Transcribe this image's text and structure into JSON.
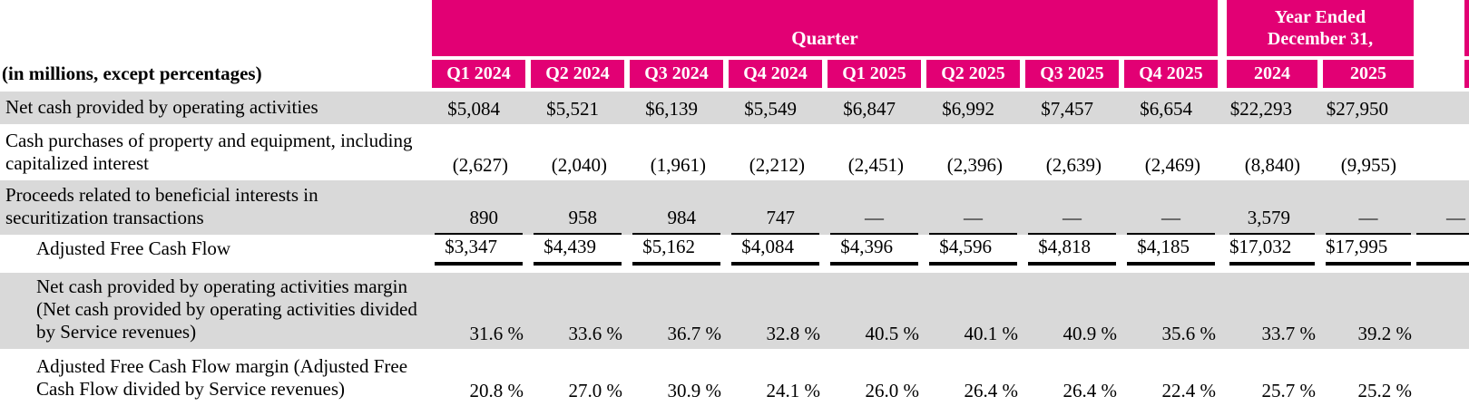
{
  "colors": {
    "brand_magenta": "#E20074",
    "row_stripe_gray": "#D9D9D9",
    "header_text": "#FFFFFF",
    "body_text": "#000000"
  },
  "table": {
    "corner_label": "(in millions, except percentages)",
    "quarter_group_label": "Quarter",
    "year_group_label_line1": "Year Ended",
    "year_group_label_line2": "December 31,",
    "quarter_columns": [
      "Q1 2024",
      "Q2 2024",
      "Q3 2024",
      "Q4 2024",
      "Q1 2025",
      "Q2 2025",
      "Q3 2025",
      "Q4 2025"
    ],
    "year_columns": [
      "2024",
      "2025"
    ],
    "rows": [
      {
        "label": "Net cash provided by operating activities",
        "indent": false,
        "stripe": "gray",
        "format": "money",
        "underline": "none",
        "values": [
          "$5,084",
          "$5,521",
          "$6,139",
          "$5,549",
          "$6,847",
          "$6,992",
          "$7,457",
          "$6,654",
          "$22,293",
          "$27,950"
        ]
      },
      {
        "label": "Cash purchases of property and equipment, including capitalized interest",
        "indent": false,
        "stripe": "white",
        "format": "paren",
        "underline": "none",
        "values": [
          "(2,627)",
          "(2,040)",
          "(1,961)",
          "(2,212)",
          "(2,451)",
          "(2,396)",
          "(2,639)",
          "(2,469)",
          "(8,840)",
          "(9,955)"
        ]
      },
      {
        "label": "Proceeds related to beneficial interests in securitization transactions",
        "indent": false,
        "stripe": "gray",
        "format": "plain",
        "underline": "thin",
        "edge_fragment": "—",
        "values": [
          "890",
          "958",
          "984",
          "747",
          "—",
          "—",
          "—",
          "—",
          "3,579",
          "—"
        ]
      },
      {
        "label": "Adjusted Free Cash Flow",
        "indent": true,
        "stripe": "white",
        "format": "money",
        "underline": "thick",
        "edge_fragment": "",
        "values": [
          "$3,347",
          "$4,439",
          "$5,162",
          "$4,084",
          "$4,396",
          "$4,596",
          "$4,818",
          "$4,185",
          "$17,032",
          "$17,995"
        ]
      },
      {
        "label": "Net cash provided by operating activities margin (Net cash provided by operating activities divided by Service revenues)",
        "indent": true,
        "stripe": "gray",
        "format": "percent",
        "underline": "none",
        "values": [
          "31.6 %",
          "33.6 %",
          "36.7 %",
          "32.8 %",
          "40.5 %",
          "40.1 %",
          "40.9 %",
          "35.6 %",
          "33.7 %",
          "39.2 %"
        ]
      },
      {
        "label": "Adjusted Free Cash Flow margin (Adjusted Free Cash Flow divided by Service revenues)",
        "indent": true,
        "stripe": "white",
        "format": "percent",
        "underline": "none",
        "values": [
          "20.8 %",
          "27.0 %",
          "30.9 %",
          "24.1 %",
          "26.0 %",
          "26.4 %",
          "26.4 %",
          "22.4 %",
          "25.7 %",
          "25.2 %"
        ]
      }
    ]
  }
}
